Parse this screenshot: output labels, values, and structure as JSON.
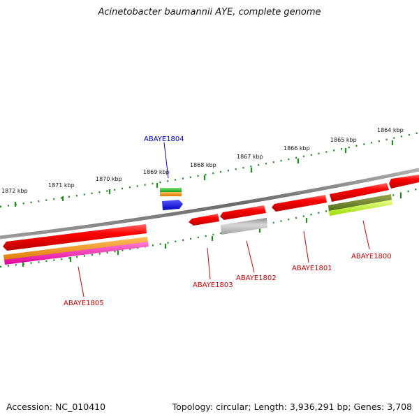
{
  "title": "Acinetobacter baumannii AYE, complete genome",
  "footer": {
    "accession": "Accession: NC_010410",
    "stats": "Topology: circular; Length: 3,936,291 bp; Genes: 3,708"
  },
  "colors": {
    "backbone": "#7a7a7a",
    "tick": "#1e8c1e",
    "label_red": "#cc0000",
    "label_blue": "#0000cc"
  },
  "kbp_marks": [
    "1864 kbp",
    "1865 kbp",
    "1866 kbp",
    "1867 kbp",
    "1868 kbp",
    "1869 kbp",
    "1870 kbp",
    "1871 kbp",
    "1872 kbp"
  ],
  "gene_labels": [
    {
      "name": "ABAYE1804",
      "color": "blue"
    },
    {
      "name": "ABAYE1805",
      "color": "red"
    },
    {
      "name": "ABAYE1803",
      "color": "red"
    },
    {
      "name": "ABAYE1802",
      "color": "red"
    },
    {
      "name": "ABAYE1801",
      "color": "red"
    },
    {
      "name": "ABAYE1800",
      "color": "red"
    }
  ]
}
